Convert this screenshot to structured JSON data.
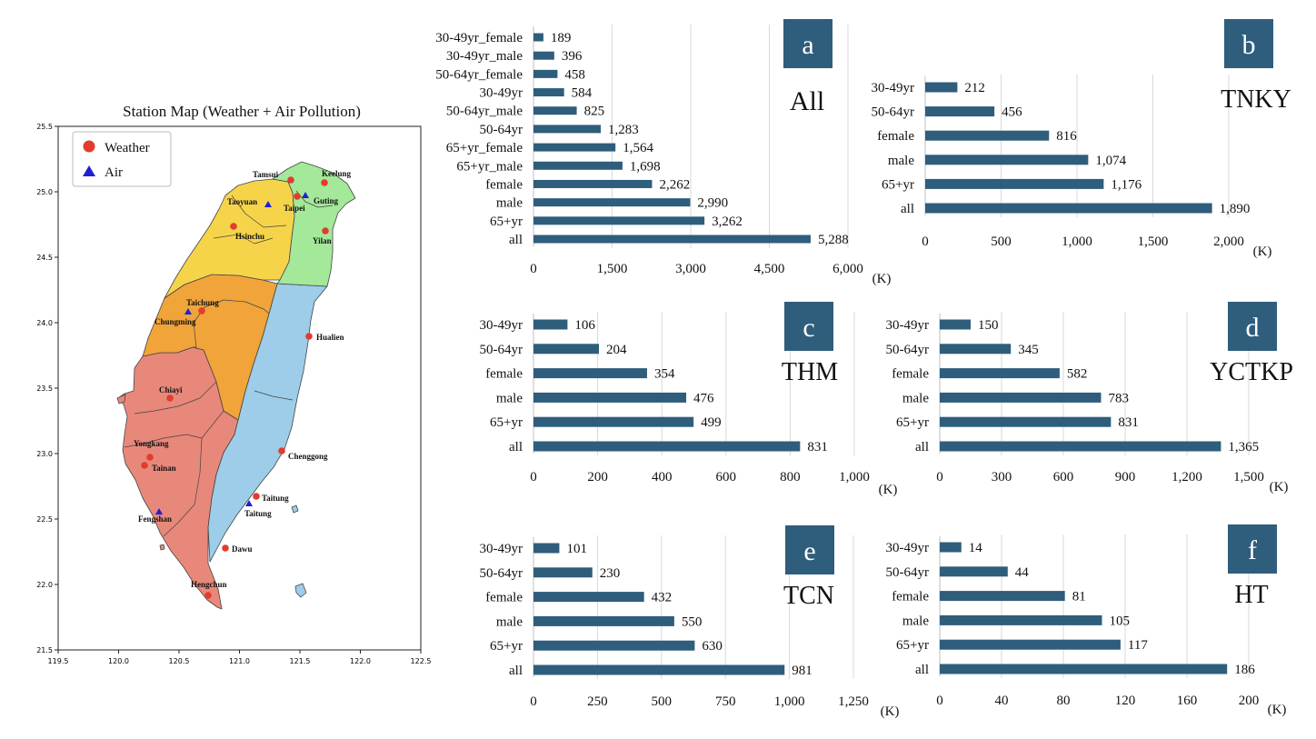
{
  "map": {
    "title": "Station Map (Weather + Air Pollution)",
    "legend": [
      {
        "label": "Weather",
        "marker": "circle",
        "color": "#e33b2e"
      },
      {
        "label": "Air",
        "marker": "triangle",
        "color": "#1f1fd6"
      }
    ],
    "x_ticks": [
      "119.5",
      "120.0",
      "120.5",
      "121.0",
      "121.5",
      "122.0",
      "122.5"
    ],
    "y_ticks": [
      "25.5",
      "25.0",
      "24.5",
      "24.0",
      "23.5",
      "23.0",
      "22.5",
      "22.0",
      "21.5"
    ],
    "region_colors": {
      "north": "#a4e89a",
      "northwest": "#f6d44a",
      "central": "#f0a43a",
      "south": "#e8887a",
      "east": "#9dcde8"
    },
    "weather_stations": [
      "Tamsui",
      "Keelung",
      "Taipei",
      "Hsinchu",
      "Yilan",
      "Taichung",
      "Hualien",
      "Chiayi",
      "Yongkang",
      "Tainan",
      "Chenggong",
      "Taitung",
      "Dawu",
      "Hengchun"
    ],
    "air_stations": [
      "Taoyuan",
      "Guting",
      "Chungming",
      "Fengshan",
      "Taitung"
    ]
  },
  "chart_data": [
    {
      "type": "bar",
      "orientation": "horizontal",
      "panel": "a",
      "title": "All",
      "categories": [
        "30-49yr_female",
        "30-49yr_male",
        "50-64yr_female",
        "30-49yr",
        "50-64yr_male",
        "50-64yr",
        "65+yr_female",
        "65+yr_male",
        "female",
        "male",
        "65+yr",
        "all"
      ],
      "values": [
        189,
        396,
        458,
        584,
        825,
        1283,
        1564,
        1698,
        2262,
        2990,
        3262,
        5288
      ],
      "value_labels": [
        "189",
        "396",
        "458",
        "584",
        "825",
        "1,283",
        "1,564",
        "1,698",
        "2,262",
        "2,990",
        "3,262",
        "5,288"
      ],
      "xlim": [
        0,
        6000
      ],
      "x_ticks": [
        "0",
        "1,500",
        "3,000",
        "4,500",
        "6,000"
      ],
      "xunit": "(K)",
      "color": "#2f5d7c",
      "grid": true
    },
    {
      "type": "bar",
      "orientation": "horizontal",
      "panel": "b",
      "title": "TNKY",
      "categories": [
        "30-49yr",
        "50-64yr",
        "female",
        "male",
        "65+yr",
        "all"
      ],
      "values": [
        212,
        456,
        816,
        1074,
        1176,
        1890
      ],
      "value_labels": [
        "212",
        "456",
        "816",
        "1,074",
        "1,176",
        "1,890"
      ],
      "xlim": [
        0,
        2000
      ],
      "x_ticks": [
        "0",
        "500",
        "1,000",
        "1,500",
        "2,000"
      ],
      "xunit": "(K)",
      "color": "#2f5d7c",
      "grid": true
    },
    {
      "type": "bar",
      "orientation": "horizontal",
      "panel": "c",
      "title": "THM",
      "categories": [
        "30-49yr",
        "50-64yr",
        "female",
        "male",
        "65+yr",
        "all"
      ],
      "values": [
        106,
        204,
        354,
        476,
        499,
        831
      ],
      "value_labels": [
        "106",
        "204",
        "354",
        "476",
        "499",
        "831"
      ],
      "xlim": [
        0,
        1000
      ],
      "x_ticks": [
        "0",
        "200",
        "400",
        "600",
        "800",
        "1,000"
      ],
      "xunit": "(K)",
      "color": "#2f5d7c",
      "grid": true
    },
    {
      "type": "bar",
      "orientation": "horizontal",
      "panel": "d",
      "title": "YCTKP",
      "categories": [
        "30-49yr",
        "50-64yr",
        "female",
        "male",
        "65+yr",
        "all"
      ],
      "values": [
        150,
        345,
        582,
        783,
        831,
        1365
      ],
      "value_labels": [
        "150",
        "345",
        "582",
        "783",
        "831",
        "1,365"
      ],
      "xlim": [
        0,
        1500
      ],
      "x_ticks": [
        "0",
        "300",
        "600",
        "900",
        "1,200",
        "1,500"
      ],
      "xunit": "(K)",
      "color": "#2f5d7c",
      "grid": true
    },
    {
      "type": "bar",
      "orientation": "horizontal",
      "panel": "e",
      "title": "TCN",
      "categories": [
        "30-49yr",
        "50-64yr",
        "female",
        "male",
        "65+yr",
        "all"
      ],
      "values": [
        101,
        230,
        432,
        550,
        630,
        981
      ],
      "value_labels": [
        "101",
        "230",
        "432",
        "550",
        "630",
        "981"
      ],
      "xlim": [
        0,
        1250
      ],
      "x_ticks": [
        "0",
        "250",
        "500",
        "750",
        "1,000",
        "1,250"
      ],
      "xunit": "(K)",
      "color": "#2f5d7c",
      "grid": true
    },
    {
      "type": "bar",
      "orientation": "horizontal",
      "panel": "f",
      "title": "HT",
      "categories": [
        "30-49yr",
        "50-64yr",
        "female",
        "male",
        "65+yr",
        "all"
      ],
      "values": [
        14,
        44,
        81,
        105,
        117,
        186
      ],
      "value_labels": [
        "14",
        "44",
        "81",
        "105",
        "117",
        "186"
      ],
      "xlim": [
        0,
        200
      ],
      "x_ticks": [
        "0",
        "40",
        "80",
        "120",
        "160",
        "200"
      ],
      "xunit": "(K)",
      "color": "#2f5d7c",
      "grid": true
    }
  ]
}
